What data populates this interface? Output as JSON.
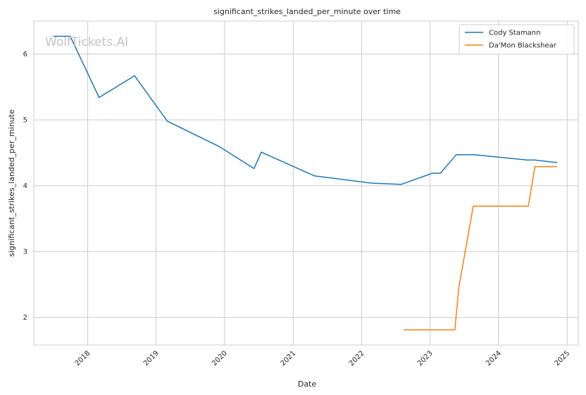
{
  "watermark": "WolfTickets.AI",
  "chart_data": {
    "type": "line",
    "title": "significant_strikes_landed_per_minute over time",
    "xlabel": "Date",
    "ylabel": "significant_strikes_landed_per_minute",
    "xlim": [
      "2017-03-20",
      "2025-03-01"
    ],
    "ylim": [
      1.58,
      6.5
    ],
    "x_ticks": [
      "2018",
      "2019",
      "2020",
      "2021",
      "2022",
      "2023",
      "2024",
      "2025"
    ],
    "y_ticks": [
      2,
      3,
      4,
      5,
      6
    ],
    "grid": true,
    "legend_position": "top-right",
    "series": [
      {
        "name": "Cody Stamann",
        "color": "#1f77b4",
        "points": [
          [
            "2017-07-01",
            6.27
          ],
          [
            "2017-09-30",
            6.27
          ],
          [
            "2018-03-03",
            5.34
          ],
          [
            "2018-09-08",
            5.67
          ],
          [
            "2019-03-02",
            4.98
          ],
          [
            "2019-12-07",
            4.59
          ],
          [
            "2020-06-06",
            4.26
          ],
          [
            "2020-07-15",
            4.51
          ],
          [
            "2021-04-24",
            4.15
          ],
          [
            "2022-02-19",
            4.04
          ],
          [
            "2022-07-30",
            4.02
          ],
          [
            "2023-01-14",
            4.19
          ],
          [
            "2023-02-25",
            4.19
          ],
          [
            "2023-05-20",
            4.47
          ],
          [
            "2023-08-26",
            4.47
          ],
          [
            "2024-06-01",
            4.39
          ],
          [
            "2024-07-13",
            4.39
          ],
          [
            "2024-11-09",
            4.35
          ]
        ]
      },
      {
        "name": "Da'Mon Blackshear",
        "color": "#ff7f0e",
        "points": [
          [
            "2022-08-13",
            1.81
          ],
          [
            "2023-05-13",
            1.81
          ],
          [
            "2023-06-03",
            2.45
          ],
          [
            "2023-08-19",
            3.69
          ],
          [
            "2024-06-08",
            3.69
          ],
          [
            "2024-07-13",
            4.29
          ],
          [
            "2024-11-09",
            4.29
          ]
        ]
      }
    ]
  }
}
